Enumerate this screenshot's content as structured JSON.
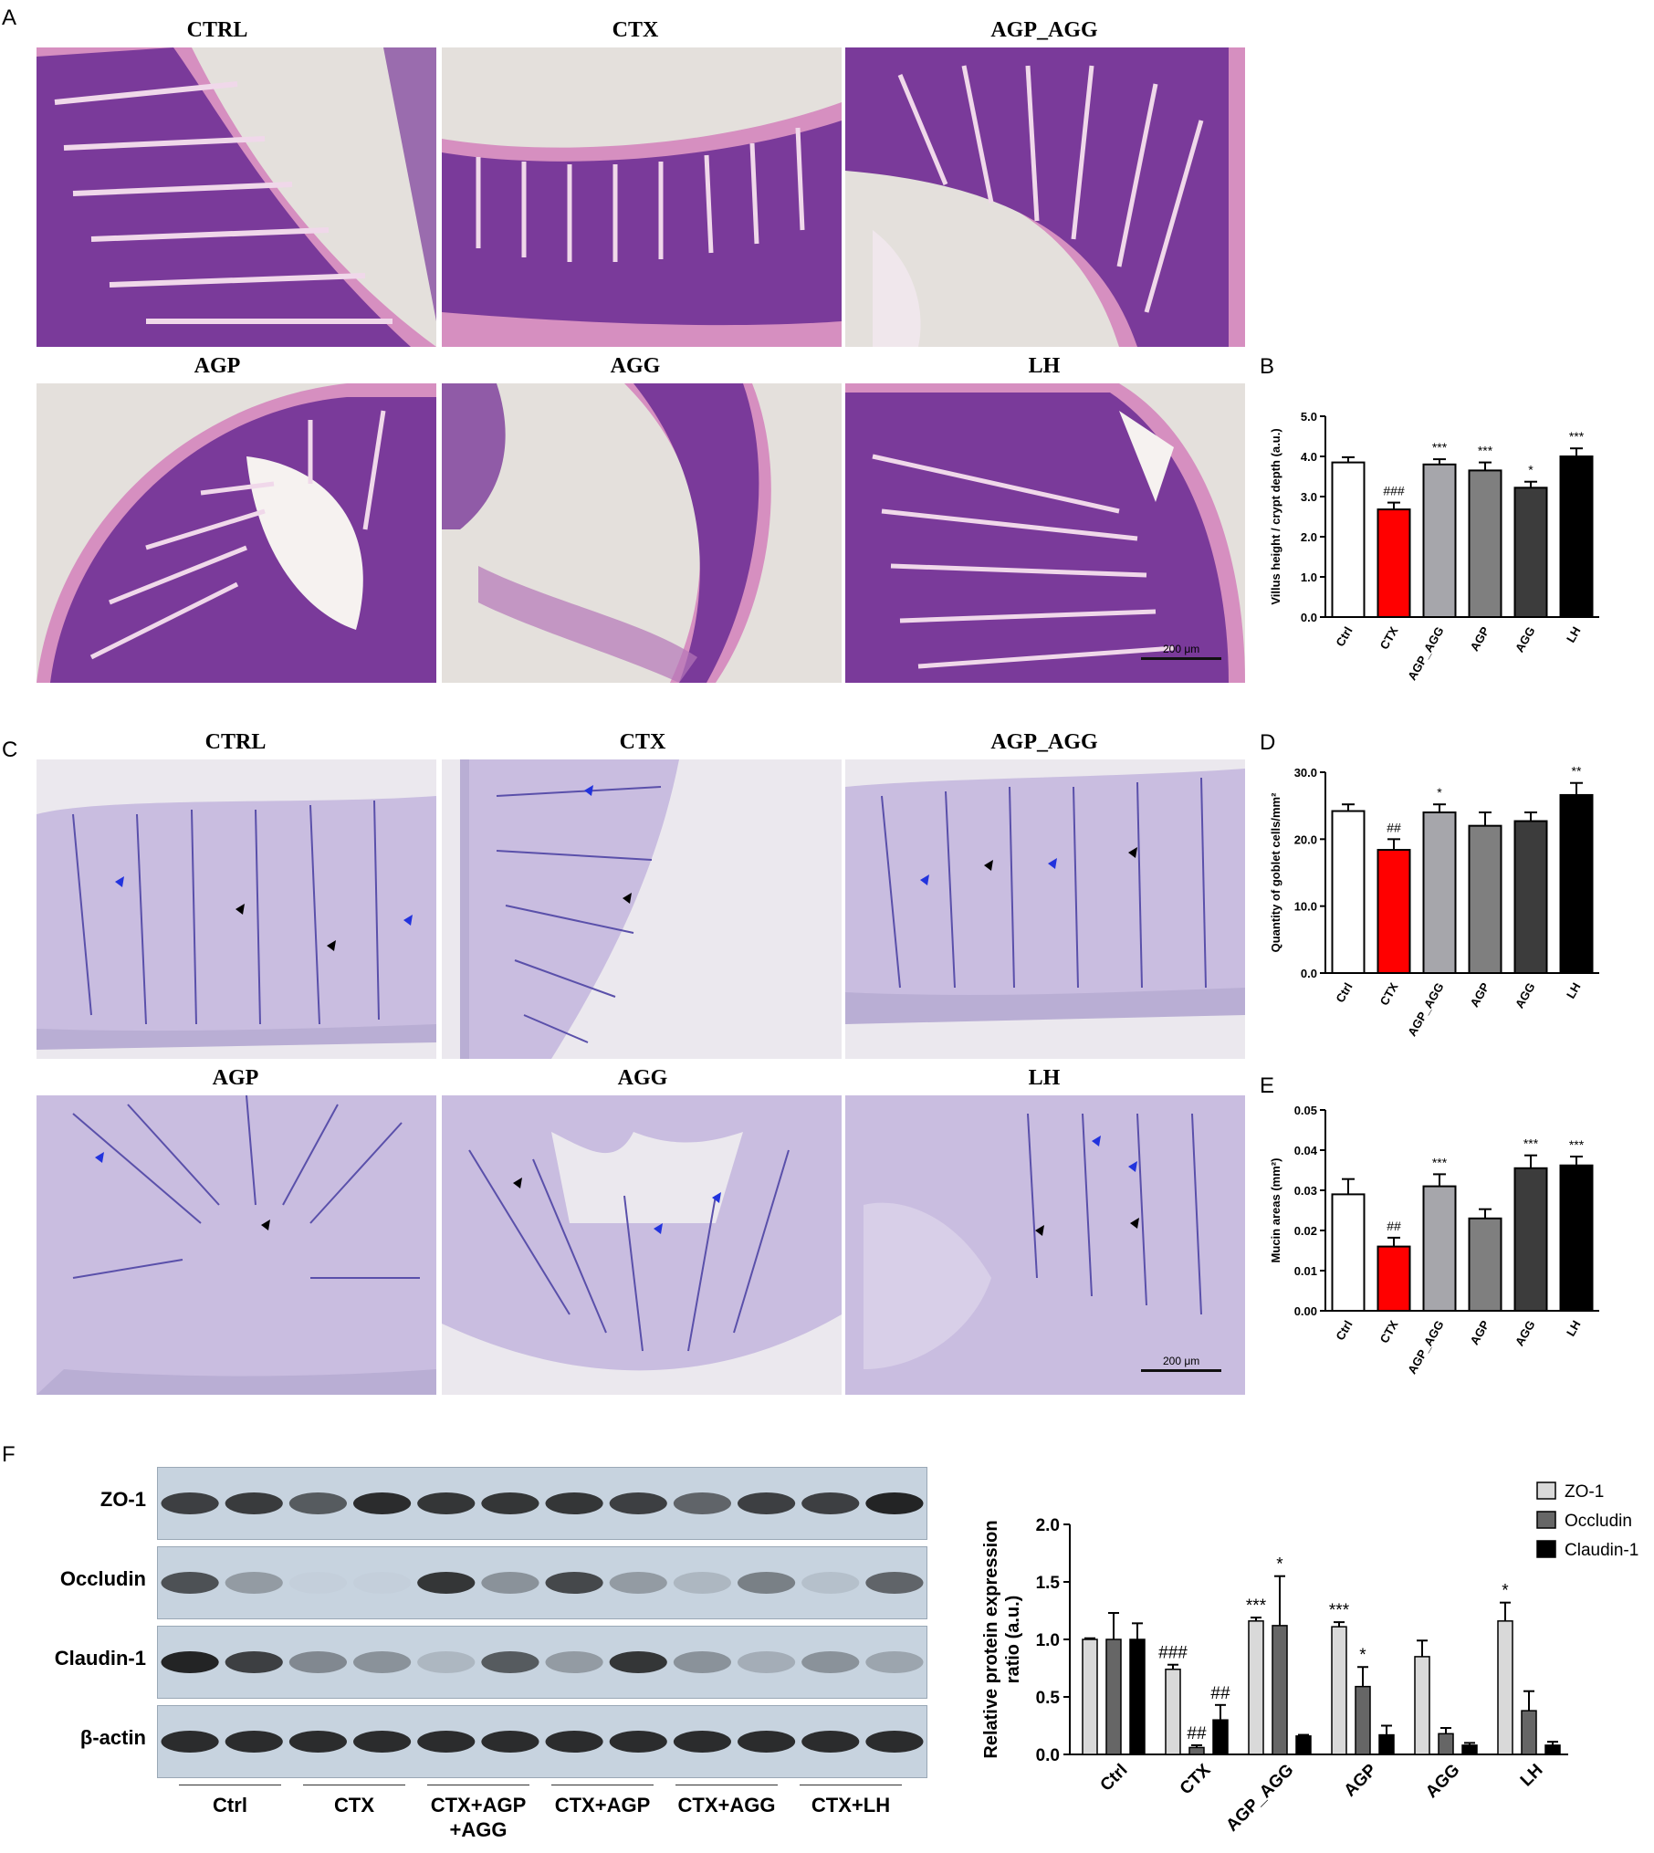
{
  "panels": {
    "A": "A",
    "B": "B",
    "C": "C",
    "D": "D",
    "E": "E",
    "F": "F"
  },
  "histology_he": {
    "titles": [
      "CTRL",
      "CTX",
      "AGP_AGG",
      "AGP",
      "AGG",
      "LH"
    ],
    "scale_label": "200 μm",
    "colors": {
      "tissue": "#7a3a9a",
      "stroma": "#d68fc0",
      "bg": "#e4e0dc"
    }
  },
  "histology_ab": {
    "titles": [
      "CTRL",
      "CTX",
      "AGP_AGG",
      "AGP",
      "AGG",
      "LH"
    ],
    "scale_label": "200 μm",
    "colors": {
      "tissue": "#c9bde0",
      "stain": "#3a2f9a",
      "bg": "#ebe8ee",
      "blue_arrow": "#2233dd",
      "black_arrow": "#000000"
    }
  },
  "chart_data": [
    {
      "id": "B",
      "type": "bar",
      "ylabel": "Villus height / crypt depth (a.u.)",
      "ylim": [
        0,
        5
      ],
      "yticks": [
        "0.0",
        "1.0",
        "2.0",
        "3.0",
        "4.0",
        "5.0"
      ],
      "categories": [
        "Ctrl",
        "CTX",
        "AGP_AGG",
        "AGP",
        "AGG",
        "LH"
      ],
      "values": [
        3.85,
        2.68,
        3.8,
        3.65,
        3.22,
        4.0
      ],
      "errors": [
        0.13,
        0.17,
        0.13,
        0.2,
        0.15,
        0.2
      ],
      "annotations": [
        "",
        "###",
        "***",
        "***",
        "*",
        "***"
      ],
      "colors": [
        "#ffffff",
        "#ff0000",
        "#a6a6ab",
        "#7f7f7f",
        "#3c3c3c",
        "#000000"
      ]
    },
    {
      "id": "D",
      "type": "bar",
      "ylabel": "Quantity of goblet cells/mm²",
      "ylim": [
        0,
        30
      ],
      "yticks": [
        "0.0",
        "10.0",
        "20.0",
        "30.0"
      ],
      "categories": [
        "Ctrl",
        "CTX",
        "AGP_AGG",
        "AGP",
        "AGG",
        "LH"
      ],
      "values": [
        24.2,
        18.4,
        24.0,
        22.0,
        22.7,
        26.6
      ],
      "errors": [
        1.0,
        1.6,
        1.2,
        2.0,
        1.3,
        1.8
      ],
      "annotations": [
        "",
        "##",
        "*",
        "",
        "",
        "**"
      ],
      "colors": [
        "#ffffff",
        "#ff0000",
        "#a6a6ab",
        "#7f7f7f",
        "#3c3c3c",
        "#000000"
      ]
    },
    {
      "id": "E",
      "type": "bar",
      "ylabel": "Mucin areas (mm²)",
      "ylim": [
        0,
        0.05
      ],
      "yticks": [
        "0.00",
        "0.01",
        "0.02",
        "0.03",
        "0.04",
        "0.05"
      ],
      "categories": [
        "Ctrl",
        "CTX",
        "AGP_AGG",
        "AGP",
        "AGG",
        "LH"
      ],
      "values": [
        0.029,
        0.016,
        0.031,
        0.023,
        0.0355,
        0.0362
      ],
      "errors": [
        0.0038,
        0.0022,
        0.003,
        0.0023,
        0.0032,
        0.0022
      ],
      "annotations": [
        "",
        "##",
        "***",
        "",
        "***",
        "***"
      ],
      "colors": [
        "#ffffff",
        "#ff0000",
        "#a6a6ab",
        "#7f7f7f",
        "#3c3c3c",
        "#000000"
      ]
    },
    {
      "id": "F",
      "type": "bar",
      "ylabel": "Relative protein expression ratio (a.u.)",
      "ylabel_lines": [
        "Relative protein expression",
        "ratio (a.u.)"
      ],
      "ylim": [
        0,
        2
      ],
      "yticks": [
        "0.0",
        "0.5",
        "1.0",
        "1.5",
        "2.0"
      ],
      "categories": [
        "Ctrl",
        "CTX",
        "AGP_AGG",
        "AGP",
        "AGG",
        "LH"
      ],
      "series": [
        {
          "name": "ZO-1",
          "color": "#d9d9d9",
          "values": [
            1.0,
            0.74,
            1.16,
            1.11,
            0.85,
            1.16
          ],
          "errors": [
            0.01,
            0.04,
            0.03,
            0.04,
            0.14,
            0.16
          ],
          "annotations": [
            "",
            "###",
            "***",
            "***",
            "",
            "*"
          ]
        },
        {
          "name": "Occludin",
          "color": "#666666",
          "values": [
            1.0,
            0.06,
            1.12,
            0.59,
            0.18,
            0.38
          ],
          "errors": [
            0.23,
            0.02,
            0.43,
            0.17,
            0.05,
            0.17
          ],
          "annotations": [
            "",
            "##",
            "*",
            "*",
            "",
            ""
          ]
        },
        {
          "name": "Claudin-1",
          "color": "#000000",
          "values": [
            1.0,
            0.3,
            0.16,
            0.17,
            0.08,
            0.08
          ],
          "errors": [
            0.14,
            0.13,
            0.01,
            0.08,
            0.02,
            0.03
          ],
          "annotations": [
            "",
            "##",
            "",
            "",
            "",
            ""
          ]
        }
      ],
      "legend": "top-right"
    }
  ],
  "western_blot": {
    "rows": [
      "ZO-1",
      "Occludin",
      "Claudin-1",
      "β-actin"
    ],
    "groups": [
      "Ctrl",
      "CTX",
      "CTX+AGP\n+AGG",
      "CTX+AGP",
      "CTX+AGG",
      "CTX+LH"
    ],
    "intensities": {
      "ZO-1": [
        0.8,
        0.82,
        0.65,
        0.9,
        0.85,
        0.85,
        0.85,
        0.8,
        0.6,
        0.8,
        0.8,
        0.95
      ],
      "Occludin": [
        0.7,
        0.3,
        0.02,
        0.02,
        0.85,
        0.35,
        0.75,
        0.3,
        0.15,
        0.45,
        0.1,
        0.6
      ],
      "Claudin-1": [
        0.95,
        0.8,
        0.4,
        0.35,
        0.15,
        0.65,
        0.3,
        0.85,
        0.35,
        0.2,
        0.35,
        0.25
      ],
      "β-actin": [
        0.9,
        0.9,
        0.9,
        0.9,
        0.9,
        0.9,
        0.9,
        0.9,
        0.9,
        0.9,
        0.9,
        0.9
      ]
    }
  }
}
